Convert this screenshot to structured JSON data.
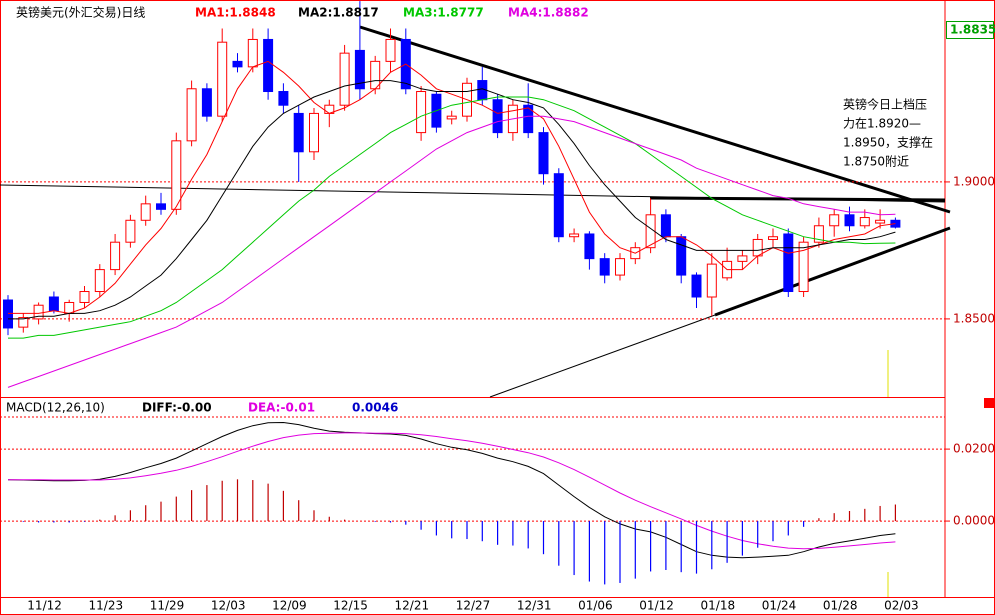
{
  "chart_data": [
    {
      "type": "candlestick",
      "title": "英镑美元(外汇交易)日线",
      "categories": [
        null,
        null,
        "11/12",
        null,
        null,
        null,
        "11/23",
        null,
        null,
        null,
        "11/29",
        null,
        null,
        null,
        "12/03",
        null,
        null,
        null,
        "12/09",
        null,
        null,
        null,
        "12/15",
        null,
        null,
        null,
        "12/21",
        null,
        null,
        null,
        "12/27",
        null,
        null,
        null,
        "12/31",
        null,
        null,
        null,
        "01/06",
        null,
        null,
        null,
        "01/12",
        null,
        null,
        null,
        "01/18",
        null,
        null,
        null,
        "01/24",
        null,
        null,
        null,
        "01/28",
        null,
        null,
        null,
        "02/03"
      ],
      "open": [
        1.8569,
        1.847,
        1.85,
        1.858,
        1.852,
        1.856,
        1.86,
        1.868,
        1.878,
        1.886,
        1.892,
        1.89,
        1.915,
        1.934,
        1.924,
        1.944,
        1.942,
        1.952,
        1.933,
        1.925,
        1.911,
        1.925,
        1.928,
        1.948,
        1.934,
        1.944,
        1.952,
        1.918,
        1.932,
        1.923,
        1.924,
        1.937,
        1.93,
        1.918,
        1.928,
        1.918,
        1.903,
        1.88,
        1.881,
        1.872,
        1.866,
        1.872,
        1.876,
        1.888,
        1.88,
        1.866,
        1.858,
        1.865,
        1.871,
        1.873,
        1.879,
        1.881,
        1.86,
        1.878,
        1.884,
        1.888,
        1.884,
        1.885,
        1.886
      ],
      "high": [
        1.8587,
        1.852,
        1.856,
        1.86,
        1.857,
        1.862,
        1.87,
        1.881,
        1.888,
        1.895,
        1.896,
        1.918,
        1.937,
        1.936,
        1.956,
        1.947,
        1.956,
        1.956,
        1.936,
        1.928,
        1.927,
        1.93,
        1.95,
        1.966,
        1.946,
        1.956,
        1.956,
        1.935,
        1.933,
        1.926,
        1.938,
        1.942,
        1.932,
        1.93,
        1.936,
        1.92,
        1.905,
        1.883,
        1.882,
        1.874,
        1.874,
        1.878,
        1.894,
        1.89,
        1.881,
        1.867,
        1.874,
        1.876,
        1.875,
        1.881,
        1.883,
        1.883,
        1.88,
        1.887,
        1.89,
        1.891,
        1.89,
        1.89,
        1.887
      ],
      "low": [
        1.8441,
        1.845,
        1.848,
        1.852,
        1.849,
        1.854,
        1.858,
        1.866,
        1.876,
        1.884,
        1.888,
        1.888,
        1.913,
        1.922,
        1.922,
        1.94,
        1.94,
        1.93,
        1.925,
        1.9,
        1.908,
        1.92,
        1.926,
        1.93,
        1.932,
        1.94,
        1.932,
        1.915,
        1.918,
        1.921,
        1.922,
        1.928,
        1.916,
        1.915,
        1.916,
        1.899,
        1.878,
        1.878,
        1.868,
        1.863,
        1.864,
        1.87,
        1.874,
        1.878,
        1.863,
        1.854,
        1.851,
        1.864,
        1.868,
        1.87,
        1.876,
        1.858,
        1.858,
        1.876,
        1.88,
        1.882,
        1.883,
        1.883,
        1.883
      ],
      "close": [
        1.8467,
        1.8505,
        1.855,
        1.853,
        1.856,
        1.86,
        1.868,
        1.878,
        1.886,
        1.892,
        1.89,
        1.915,
        1.934,
        1.924,
        1.951,
        1.942,
        1.952,
        1.933,
        1.928,
        1.911,
        1.925,
        1.928,
        1.947,
        1.934,
        1.944,
        1.952,
        1.934,
        1.933,
        1.92,
        1.924,
        1.936,
        1.93,
        1.918,
        1.928,
        1.918,
        1.903,
        1.88,
        1.881,
        1.872,
        1.866,
        1.872,
        1.876,
        1.888,
        1.88,
        1.866,
        1.858,
        1.87,
        1.871,
        1.873,
        1.879,
        1.88,
        1.86,
        1.878,
        1.884,
        1.888,
        1.884,
        1.887,
        1.886,
        1.8835
      ],
      "up_color": "#ff0000",
      "down_color": "#0000ff",
      "series": [
        {
          "name": "MA1:1.8848",
          "color": "#ff0000",
          "values": [
            1.852,
            1.852,
            1.852,
            1.853,
            1.852,
            1.854,
            1.858,
            1.863,
            1.87,
            1.877,
            1.883,
            1.891,
            1.901,
            1.91,
            1.922,
            1.934,
            1.942,
            1.944,
            1.94,
            1.935,
            1.929,
            1.925,
            1.927,
            1.93,
            1.934,
            1.94,
            1.943,
            1.939,
            1.934,
            1.932,
            1.93,
            1.928,
            1.925,
            1.926,
            1.927,
            1.923,
            1.913,
            1.901,
            1.889,
            1.881,
            1.876,
            1.874,
            1.877,
            1.88,
            1.88,
            1.877,
            1.873,
            1.868,
            1.868,
            1.873,
            1.876,
            1.874,
            1.875,
            1.877,
            1.879,
            1.88,
            1.881,
            1.884,
            1.8848
          ]
        },
        {
          "name": "MA2:1.8817",
          "color": "#000000",
          "values": [
            1.85,
            1.85,
            1.851,
            1.851,
            1.852,
            1.852,
            1.853,
            1.855,
            1.858,
            1.862,
            1.866,
            1.872,
            1.879,
            1.886,
            1.895,
            1.904,
            1.913,
            1.92,
            1.925,
            1.928,
            1.931,
            1.933,
            1.935,
            1.936,
            1.937,
            1.937,
            1.936,
            1.934,
            1.933,
            1.933,
            1.933,
            1.934,
            1.932,
            1.93,
            1.929,
            1.927,
            1.921,
            1.914,
            1.906,
            1.899,
            1.893,
            1.887,
            1.883,
            1.879,
            1.877,
            1.875,
            1.875,
            1.875,
            1.875,
            1.875,
            1.876,
            1.876,
            1.876,
            1.877,
            1.878,
            1.879,
            1.879,
            1.88,
            1.8817
          ]
        },
        {
          "name": "MA3:1.8777",
          "color": "#00c800",
          "values": [
            1.843,
            1.843,
            1.844,
            1.844,
            1.845,
            1.846,
            1.847,
            1.848,
            1.849,
            1.851,
            1.853,
            1.856,
            1.86,
            1.864,
            1.868,
            1.873,
            1.878,
            1.883,
            1.888,
            1.893,
            1.897,
            1.902,
            1.906,
            1.91,
            1.914,
            1.918,
            1.921,
            1.924,
            1.926,
            1.928,
            1.929,
            1.93,
            1.931,
            1.931,
            1.931,
            1.93,
            1.928,
            1.926,
            1.923,
            1.92,
            1.917,
            1.914,
            1.91,
            1.906,
            1.902,
            1.898,
            1.894,
            1.891,
            1.888,
            1.886,
            1.884,
            1.882,
            1.88,
            1.879,
            1.878,
            1.878,
            1.8775,
            1.8776,
            1.8777
          ]
        },
        {
          "name": "MA4:1.8882",
          "color": "#e000e0",
          "values": [
            1.825,
            1.827,
            1.829,
            1.831,
            1.833,
            1.835,
            1.837,
            1.839,
            1.841,
            1.843,
            1.845,
            1.847,
            1.85,
            1.853,
            1.856,
            1.86,
            1.864,
            1.868,
            1.872,
            1.876,
            1.88,
            1.884,
            1.888,
            1.892,
            1.896,
            1.9,
            1.904,
            1.908,
            1.912,
            1.915,
            1.918,
            1.92,
            1.922,
            1.923,
            1.924,
            1.924,
            1.923,
            1.922,
            1.92,
            1.918,
            1.916,
            1.914,
            1.912,
            1.91,
            1.908,
            1.905,
            1.903,
            1.901,
            1.899,
            1.897,
            1.895,
            1.894,
            1.892,
            1.891,
            1.89,
            1.889,
            1.889,
            1.888,
            1.8882
          ]
        }
      ],
      "ylim": [
        1.8215,
        1.9664
      ],
      "yticks": [
        {
          "value": 1.9,
          "label": "1.9000"
        },
        {
          "value": 1.85,
          "label": "1.8500"
        }
      ],
      "grid": true,
      "last_price": 1.8835,
      "annotation": [
        "英镑今日上档压",
        "力在1.8920—",
        "1.8950，支撑在",
        "1.8750附近"
      ]
    },
    {
      "type": "macd",
      "title": "MACD(12,26,10)",
      "series": [
        {
          "name": "DIFF:-0.00",
          "color": "#000000",
          "values": [
            0.0115,
            0.0114,
            0.0113,
            0.0112,
            0.0112,
            0.0113,
            0.0116,
            0.0124,
            0.0135,
            0.0148,
            0.016,
            0.0175,
            0.0195,
            0.0215,
            0.0235,
            0.0252,
            0.0265,
            0.0273,
            0.0274,
            0.0268,
            0.0258,
            0.025,
            0.0247,
            0.0245,
            0.0243,
            0.0242,
            0.0238,
            0.0228,
            0.0215,
            0.0205,
            0.0198,
            0.0188,
            0.0175,
            0.0165,
            0.0152,
            0.0132,
            0.01,
            0.0068,
            0.0038,
            0.0012,
            -0.0008,
            -0.0022,
            -0.003,
            -0.0045,
            -0.0065,
            -0.0085,
            -0.0095,
            -0.01,
            -0.0102,
            -0.01,
            -0.0098,
            -0.0095,
            -0.0085,
            -0.0072,
            -0.0062,
            -0.0055,
            -0.0048,
            -0.004,
            -0.0035
          ]
        },
        {
          "name": "DEA:-0.01",
          "color": "#e000e0",
          "values": [
            0.0115,
            0.0115,
            0.0115,
            0.0114,
            0.0114,
            0.0114,
            0.0114,
            0.0116,
            0.012,
            0.0126,
            0.0133,
            0.0141,
            0.0152,
            0.0165,
            0.0179,
            0.0194,
            0.0208,
            0.0221,
            0.0232,
            0.0239,
            0.0243,
            0.0244,
            0.0245,
            0.0245,
            0.0244,
            0.0244,
            0.0243,
            0.024,
            0.0235,
            0.0229,
            0.0223,
            0.0216,
            0.0208,
            0.0199,
            0.019,
            0.0178,
            0.0162,
            0.0143,
            0.0122,
            0.01,
            0.0078,
            0.0058,
            0.004,
            0.0023,
            0.0006,
            -0.0012,
            -0.0028,
            -0.0042,
            -0.0054,
            -0.0063,
            -0.007,
            -0.0075,
            -0.0077,
            -0.0076,
            -0.0073,
            -0.0069,
            -0.0065,
            -0.0061,
            -0.0058
          ]
        },
        {
          "name": "0.0046",
          "color": "#0000c8",
          "bars": true,
          "values": [
            0,
            -0.0002,
            -0.0004,
            -0.0004,
            -0.0004,
            -0.0002,
            0.0004,
            0.0016,
            0.003,
            0.0044,
            0.0054,
            0.0068,
            0.0086,
            0.01,
            0.0112,
            0.0116,
            0.0114,
            0.0104,
            0.0084,
            0.0058,
            0.003,
            0.0012,
            0.0004,
            0,
            -0.0002,
            -0.0004,
            -0.001,
            -0.0024,
            -0.004,
            -0.0048,
            -0.005,
            -0.0056,
            -0.0066,
            -0.0068,
            -0.0076,
            -0.0092,
            -0.0124,
            -0.015,
            -0.0168,
            -0.0176,
            -0.0172,
            -0.016,
            -0.014,
            -0.0136,
            -0.0142,
            -0.0146,
            -0.0134,
            -0.0116,
            -0.0096,
            -0.0074,
            -0.0056,
            -0.004,
            -0.0016,
            0.0008,
            0.0022,
            0.0028,
            0.0034,
            0.0042,
            0.0046
          ]
        }
      ],
      "up_color": "#c00000",
      "down_color": "#0000ff",
      "ylim": [
        -0.0211,
        0.0342
      ],
      "yticks": [
        {
          "value": 0.02,
          "label": "0.0200"
        },
        {
          "value": 0,
          "label": "0.0000"
        }
      ],
      "grid": true
    }
  ]
}
